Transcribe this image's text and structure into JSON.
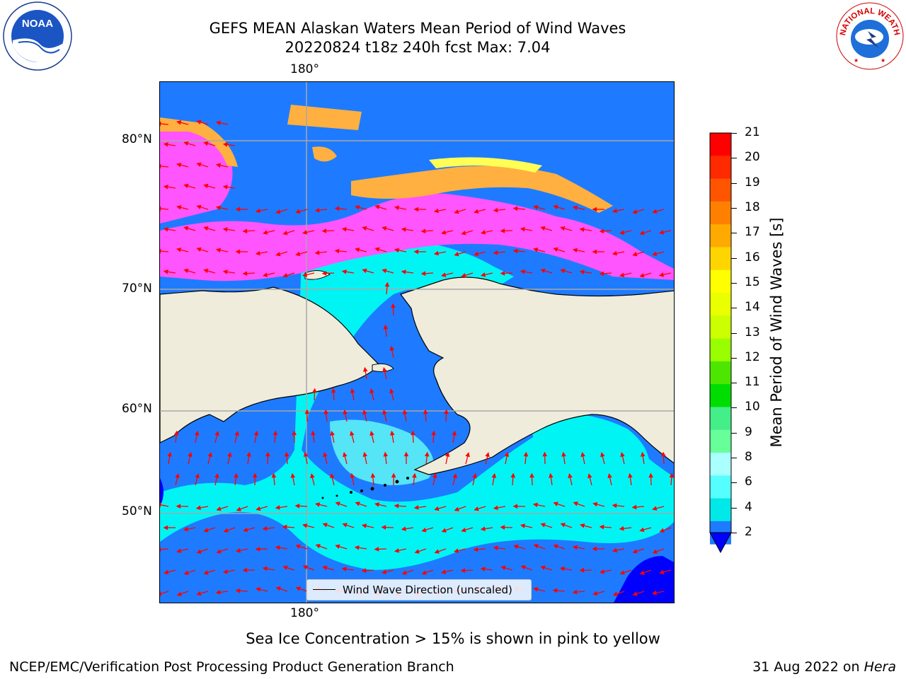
{
  "title": {
    "line1": "GEFS MEAN Alaskan Waters Mean Period of Wind Waves",
    "line2": "20220824 t18z 240h fcst   Max: 7.04"
  },
  "map": {
    "lon_labels": {
      "top": "180°",
      "bottom": "180°"
    },
    "lat_labels": [
      "80°N",
      "70°N",
      "60°N",
      "50°N"
    ],
    "legend_label": "Wind Wave Direction (unscaled)",
    "colors": {
      "land": "#efecdc",
      "ocean_low": "#1e7bff",
      "ocean_mid": "#00f4f4",
      "ocean_high": "#5ff8f4",
      "deep_blue": "#0000ff",
      "arrow": "#ff0000",
      "ice_pink": "#ff55ff",
      "ice_orange": "#ffb040",
      "ice_yellow": "#ffff55"
    }
  },
  "colorbar": {
    "title": "Mean Period of Wind Waves [s]",
    "ticks": [
      "21",
      "20",
      "19",
      "18",
      "17",
      "16",
      "15",
      "14",
      "13",
      "12",
      "11",
      "10",
      "9",
      "8",
      "6",
      "4",
      "2"
    ],
    "colors": [
      "#ff0000",
      "#ff2a00",
      "#ff5500",
      "#ff8000",
      "#ffaa00",
      "#ffd500",
      "#ffff00",
      "#eaff00",
      "#ccff00",
      "#99ff00",
      "#4de600",
      "#00dd00",
      "#44ee88",
      "#66ff99",
      "#aaffff",
      "#55ffff",
      "#00e8e8",
      "#1e7bff"
    ],
    "extend_color": "#0000ff"
  },
  "notes": {
    "sea_ice": "Sea Ice Concentration > 15% is shown in pink to yellow"
  },
  "footer": {
    "left": "NCEP/EMC/Verification Post Processing Product Generation Branch",
    "date": "31 Aug 2022 on",
    "machine": "Hera"
  },
  "logos": {
    "noaa_text": "NOAA",
    "nws_text": "NATIONAL WEATHER SERVICE"
  }
}
